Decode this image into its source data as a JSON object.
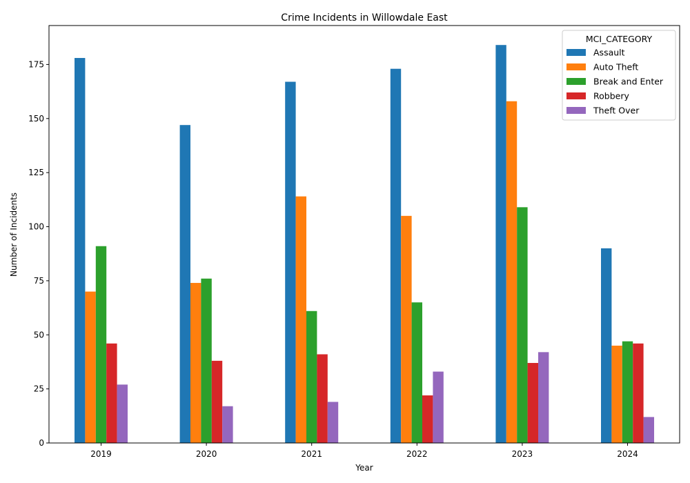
{
  "chart_data": {
    "type": "bar",
    "title": "Crime Incidents in Willowdale East",
    "xlabel": "Year",
    "ylabel": "Number of Incidents",
    "categories": [
      "2019",
      "2020",
      "2021",
      "2022",
      "2023",
      "2024"
    ],
    "ylim": [
      0,
      193
    ],
    "yticks": [
      0,
      25,
      50,
      75,
      100,
      125,
      150,
      175
    ],
    "grid": false,
    "legend": {
      "title": "MCI_CATEGORY",
      "placement": "top-right"
    },
    "series": [
      {
        "name": "Assault",
        "color": "#1f77b4",
        "values": [
          178,
          147,
          167,
          173,
          184,
          90
        ]
      },
      {
        "name": "Auto Theft",
        "color": "#ff7f0e",
        "values": [
          70,
          74,
          114,
          105,
          158,
          45
        ]
      },
      {
        "name": "Break and Enter",
        "color": "#2ca02c",
        "values": [
          91,
          76,
          61,
          65,
          109,
          47
        ]
      },
      {
        "name": "Robbery",
        "color": "#d62728",
        "values": [
          46,
          38,
          41,
          22,
          37,
          46
        ]
      },
      {
        "name": "Theft Over",
        "color": "#9467bd",
        "values": [
          27,
          17,
          19,
          33,
          42,
          12
        ]
      }
    ]
  }
}
